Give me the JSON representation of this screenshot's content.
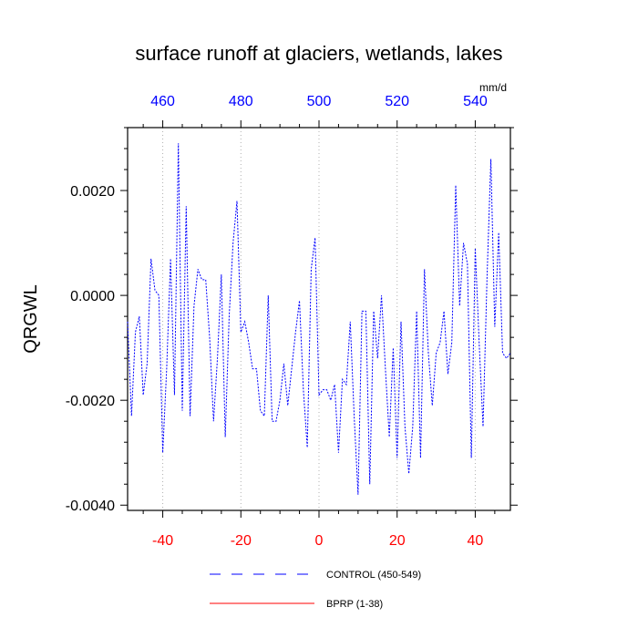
{
  "chart_data": {
    "type": "line",
    "title": "surface runoff at glaciers, wetlands, lakes",
    "ylabel": "QRGWL",
    "units": "mm/d",
    "xlim": [
      -49,
      49
    ],
    "ylim": [
      -0.0041,
      0.0032
    ],
    "x_bottom_ticks": [
      -40,
      -20,
      0,
      20,
      40
    ],
    "x_top_ticks": [
      460,
      480,
      500,
      520,
      540
    ],
    "x_top_offset": 500,
    "y_ticks": [
      0.002,
      0.0,
      -0.002,
      -0.004
    ],
    "y_tick_labels": [
      "0.0020",
      "0.0000",
      "-0.0020",
      "-0.0040"
    ],
    "grid": "vertical dotted",
    "legend": {
      "placement": "bottom",
      "entries": [
        {
          "label": "CONTROL (450-549)",
          "color": "#0000ff",
          "style": "dashed"
        },
        {
          "label": "BPRP (1-38)",
          "color": "#ff0000",
          "style": "solid"
        }
      ]
    },
    "series": [
      {
        "name": "CONTROL (450-549)",
        "color": "#0000ff",
        "x": [
          -49,
          -48,
          -47,
          -46,
          -45,
          -44,
          -43,
          -42,
          -41,
          -40,
          -39,
          -38,
          -37,
          -36,
          -35,
          -34,
          -33,
          -32,
          -31,
          -30,
          -29,
          -28,
          -27,
          -26,
          -25,
          -24,
          -23,
          -22,
          -21,
          -20,
          -19,
          -18,
          -17,
          -16,
          -15,
          -14,
          -13,
          -12,
          -11,
          -10,
          -9,
          -8,
          -7,
          -6,
          -5,
          -4,
          -3,
          -2,
          -1,
          0,
          1,
          2,
          3,
          4,
          5,
          6,
          7,
          8,
          9,
          10,
          11,
          12,
          13,
          14,
          15,
          16,
          17,
          18,
          19,
          20,
          21,
          22,
          23,
          24,
          25,
          26,
          27,
          28,
          29,
          30,
          31,
          32,
          33,
          34,
          35,
          36,
          37,
          38,
          39,
          40,
          41,
          42,
          43,
          44,
          45,
          46,
          47,
          48,
          49
        ],
        "y": [
          -0.0005,
          -0.0023,
          -0.0007,
          -0.0004,
          -0.0019,
          -0.0013,
          0.0007,
          0.0001,
          0.0,
          -0.003,
          -0.0014,
          0.0007,
          -0.0019,
          0.0029,
          -0.0022,
          0.0017,
          -0.0023,
          -0.0002,
          0.0005,
          0.0003,
          0.0003,
          -0.0008,
          -0.0024,
          -0.0012,
          0.0004,
          -0.0027,
          -0.0004,
          0.001,
          0.0018,
          -0.0007,
          -0.0005,
          -0.0009,
          -0.0014,
          -0.0014,
          -0.0022,
          -0.0023,
          0.0,
          -0.0024,
          -0.0024,
          -0.002,
          -0.0013,
          -0.0021,
          -0.0014,
          -0.0007,
          -0.0001,
          -0.0018,
          -0.0029,
          0.0005,
          0.0011,
          -0.0019,
          -0.0018,
          -0.0018,
          -0.002,
          -0.0017,
          -0.003,
          -0.0016,
          -0.0017,
          -0.0005,
          -0.0023,
          -0.0038,
          -0.0003,
          -0.0003,
          -0.0036,
          -0.0003,
          -0.0012,
          0.0,
          -0.0014,
          -0.0027,
          -0.001,
          -0.0031,
          -0.0005,
          -0.0025,
          -0.0034,
          -0.0025,
          -0.0003,
          -0.0031,
          0.0005,
          -0.0011,
          -0.0021,
          -0.0011,
          -0.0009,
          -0.0003,
          -0.0015,
          -0.0009,
          0.0021,
          -0.0002,
          0.001,
          0.0006,
          -0.0031,
          0.0009,
          -0.0009,
          -0.0025,
          0.0003,
          0.0026,
          -0.0006,
          0.0012,
          -0.0011,
          -0.0012,
          -0.0011
        ]
      }
    ]
  }
}
